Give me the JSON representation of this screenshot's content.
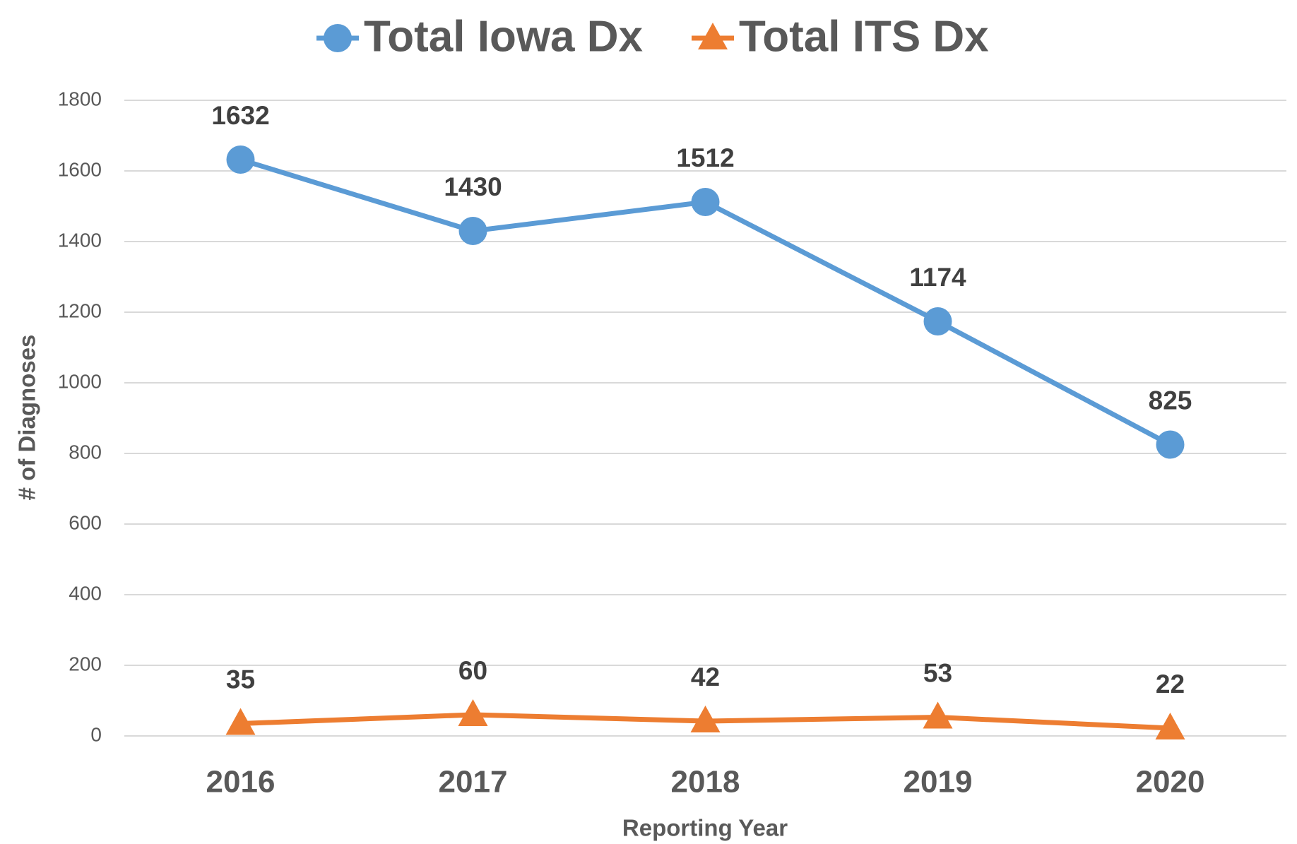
{
  "chart_data": {
    "type": "line",
    "x_label": "Reporting Year",
    "y_label": "# of Diagnoses",
    "categories": [
      "2016",
      "2017",
      "2018",
      "2019",
      "2020"
    ],
    "series": [
      {
        "name": "Total Iowa Dx",
        "color": "#5b9bd5",
        "marker": "circle",
        "values": [
          1632,
          1430,
          1512,
          1174,
          825
        ]
      },
      {
        "name": "Total ITS Dx",
        "color": "#ed7d31",
        "marker": "triangle",
        "values": [
          35,
          60,
          42,
          53,
          22
        ]
      }
    ],
    "ylim": [
      0,
      1800
    ],
    "yticks": [
      0,
      200,
      400,
      600,
      800,
      1000,
      1200,
      1400,
      1600,
      1800
    ],
    "grid": true,
    "legend": "top",
    "data_labels": true
  }
}
